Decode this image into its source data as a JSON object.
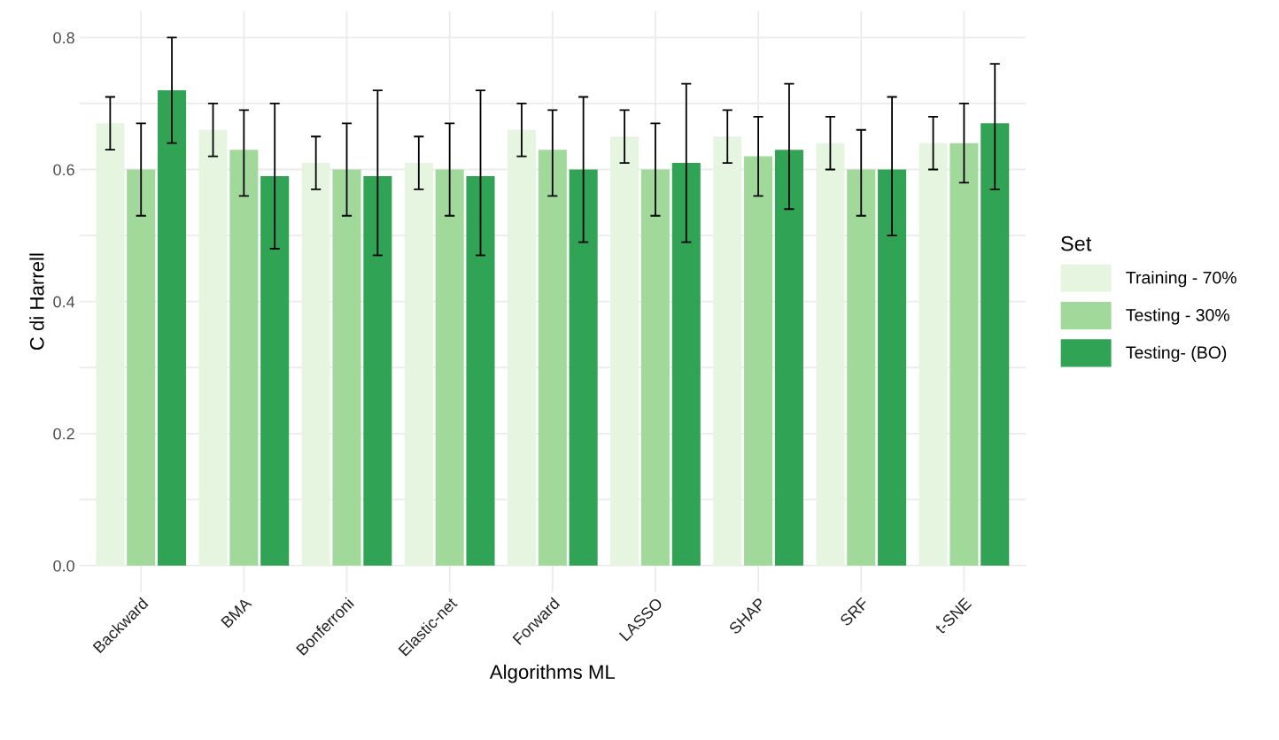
{
  "chart_data": {
    "type": "bar",
    "xlabel": "Algorithms ML",
    "ylabel": "C di Harrell",
    "legend_title": "Set",
    "categories": [
      "Backward",
      "BMA",
      "Bonferroni",
      "Elastic-net",
      "Forward",
      "LASSO",
      "SHAP",
      "SRF",
      "t-SNE"
    ],
    "series": [
      {
        "name": "Training - 70%",
        "color": "#e5f5e0",
        "values": [
          0.67,
          0.66,
          0.61,
          0.61,
          0.66,
          0.65,
          0.65,
          0.64,
          0.64
        ],
        "errors": [
          [
            0.63,
            0.71
          ],
          [
            0.62,
            0.7
          ],
          [
            0.57,
            0.65
          ],
          [
            0.57,
            0.65
          ],
          [
            0.62,
            0.7
          ],
          [
            0.61,
            0.69
          ],
          [
            0.61,
            0.69
          ],
          [
            0.6,
            0.68
          ],
          [
            0.6,
            0.68
          ]
        ]
      },
      {
        "name": "Testing - 30%",
        "color": "#a1d99b",
        "values": [
          0.6,
          0.63,
          0.6,
          0.6,
          0.63,
          0.6,
          0.62,
          0.6,
          0.64
        ],
        "errors": [
          [
            0.53,
            0.67
          ],
          [
            0.56,
            0.69
          ],
          [
            0.53,
            0.67
          ],
          [
            0.53,
            0.67
          ],
          [
            0.56,
            0.69
          ],
          [
            0.53,
            0.67
          ],
          [
            0.56,
            0.68
          ],
          [
            0.53,
            0.66
          ],
          [
            0.58,
            0.7
          ]
        ]
      },
      {
        "name": "Testing- (BO)",
        "color": "#31a354",
        "values": [
          0.72,
          0.59,
          0.59,
          0.59,
          0.6,
          0.61,
          0.63,
          0.6,
          0.67
        ],
        "errors": [
          [
            0.64,
            0.8
          ],
          [
            0.48,
            0.7
          ],
          [
            0.47,
            0.72
          ],
          [
            0.47,
            0.72
          ],
          [
            0.49,
            0.71
          ],
          [
            0.49,
            0.73
          ],
          [
            0.54,
            0.73
          ],
          [
            0.5,
            0.71
          ],
          [
            0.57,
            0.76
          ]
        ]
      }
    ],
    "ylim": [
      -0.04,
      0.84
    ],
    "yticks": [
      {
        "value": 0.0,
        "label": "0.0"
      },
      {
        "value": 0.1,
        "label": null
      },
      {
        "value": 0.2,
        "label": "0.2"
      },
      {
        "value": 0.3,
        "label": null
      },
      {
        "value": 0.4,
        "label": "0.4"
      },
      {
        "value": 0.5,
        "label": null
      },
      {
        "value": 0.6,
        "label": "0.6"
      },
      {
        "value": 0.7,
        "label": null
      },
      {
        "value": 0.8,
        "label": "0.8"
      }
    ],
    "grid": true,
    "legend": "right"
  }
}
